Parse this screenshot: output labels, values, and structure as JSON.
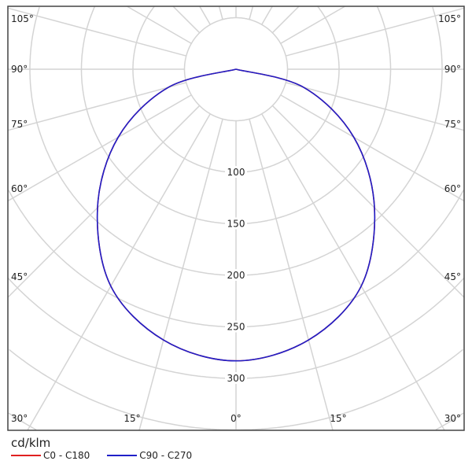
{
  "chart_data": {
    "type": "polar-line",
    "unit": "cd/klm",
    "radial_ticks": [
      "100",
      "150",
      "200",
      "250",
      "300"
    ],
    "radial_tick_values": [
      100,
      150,
      200,
      250,
      300
    ],
    "radial_grid_step": 50,
    "angle_labels_left": [
      "105°",
      "90°",
      "75°",
      "60°",
      "45°",
      "30°"
    ],
    "angle_labels_right": [
      "105°",
      "90°",
      "75°",
      "60°",
      "45°",
      "30°"
    ],
    "angle_labels_bottom": [
      "15°",
      "0°",
      "15°"
    ],
    "angles_deg": [
      0,
      15,
      30,
      45,
      60,
      75,
      90
    ],
    "series": [
      {
        "name": "C0 - C180",
        "color": "#e02020",
        "values": [
          283,
          272,
          243,
          190,
          132,
          68,
          0
        ]
      },
      {
        "name": "C90 - C270",
        "color": "#2020c8",
        "values": [
          283,
          272,
          243,
          190,
          132,
          68,
          0
        ]
      }
    ]
  }
}
